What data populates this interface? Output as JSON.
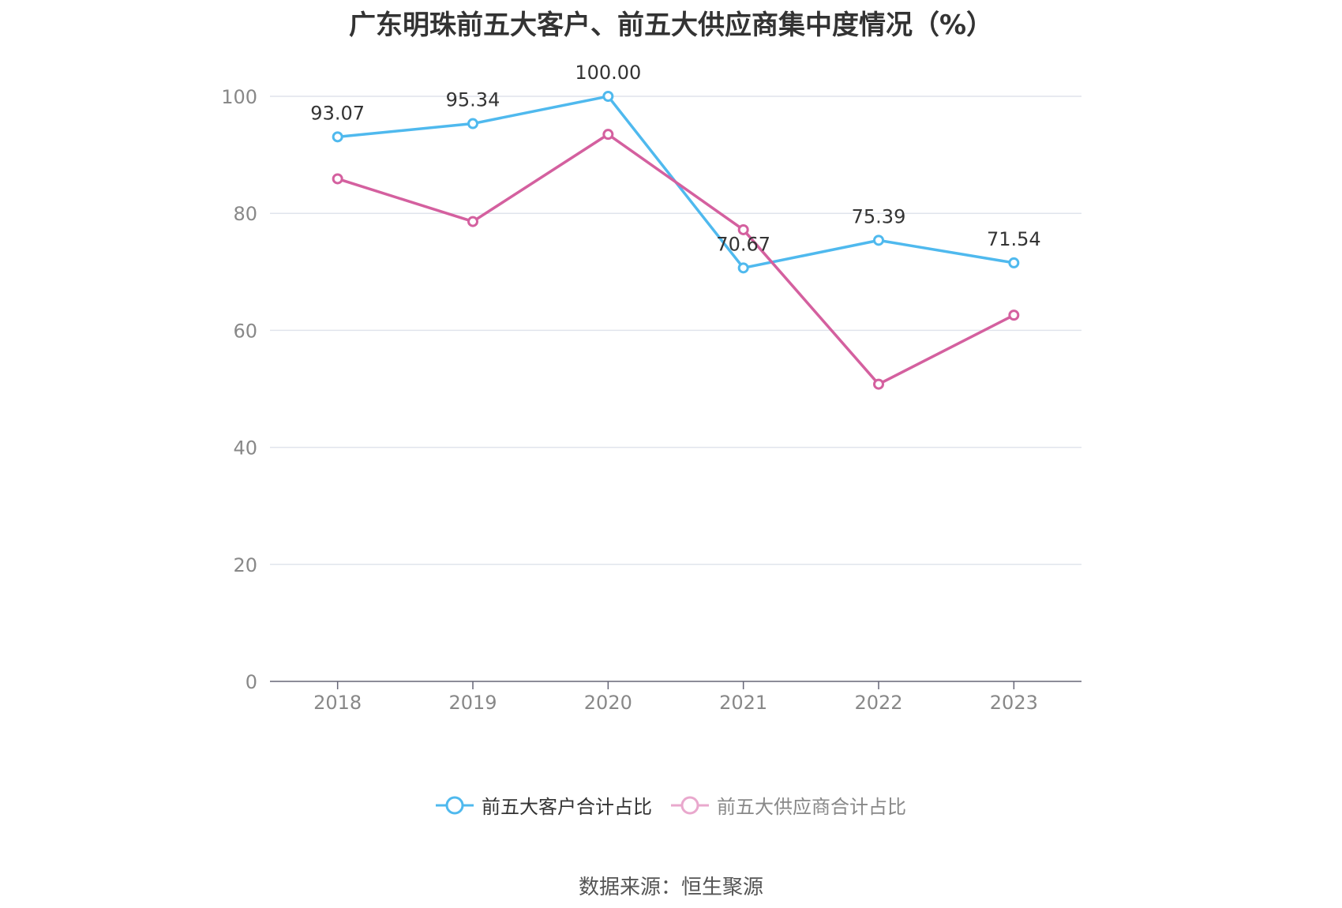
{
  "chart_data": {
    "type": "line",
    "title": "广东明珠前五大客户、前五大供应商集中度情况（%）",
    "categories": [
      "2018",
      "2019",
      "2020",
      "2021",
      "2022",
      "2023"
    ],
    "ylim": [
      0,
      100
    ],
    "yticks": [
      0,
      20,
      40,
      60,
      80,
      100
    ],
    "grid": true,
    "legend_position": "bottom",
    "series": [
      {
        "name": "前五大客户合计占比",
        "color": "#4fb9ee",
        "values": [
          93.07,
          95.34,
          100.0,
          70.67,
          75.39,
          71.54
        ],
        "labels": [
          "93.07",
          "95.34",
          "100.00",
          "70.67",
          "75.39",
          "71.54"
        ]
      },
      {
        "name": "前五大供应商合计占比",
        "color": "#d4609f",
        "legend_marker_color": "#e9a8cd",
        "values": [
          85.9,
          78.6,
          93.5,
          77.2,
          50.8,
          62.6
        ]
      }
    ],
    "source": "数据来源：恒生聚源"
  }
}
